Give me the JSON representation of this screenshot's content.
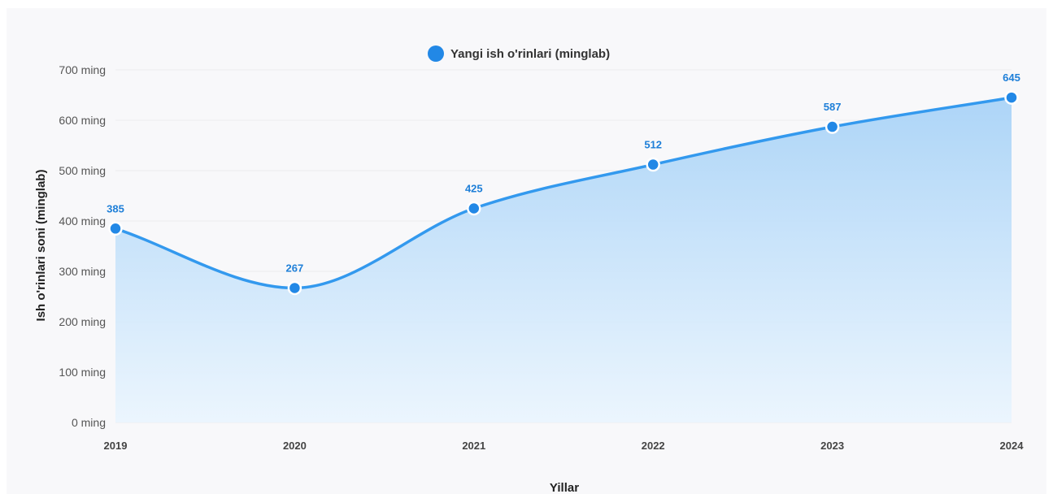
{
  "chart_data": {
    "type": "area",
    "x": [
      "2019",
      "2020",
      "2021",
      "2022",
      "2023",
      "2024"
    ],
    "series": [
      {
        "name": "Yangi ish o'rinlari (minglab)",
        "values": [
          385,
          267,
          425,
          512,
          587,
          645
        ]
      }
    ],
    "data_labels": [
      "385",
      "267",
      "425",
      "512",
      "587",
      "645"
    ],
    "xlabel": "Yillar",
    "ylabel": "Ish o'rinlari soni (minglab)",
    "ylim": [
      0,
      700
    ],
    "yticks": [
      0,
      100,
      200,
      300,
      400,
      500,
      600,
      700
    ],
    "ytick_labels": [
      "0 ming",
      "100 ming",
      "200 ming",
      "300 ming",
      "400 ming",
      "500 ming",
      "600 ming",
      "700 ming"
    ],
    "grid": true,
    "legend_position": "top-center",
    "colors": {
      "line": "#3399ee",
      "marker": "#2288e6",
      "fill_top": "#a9d3f7",
      "fill_bottom": "#eaf5fe",
      "label": "#1e7fd8"
    }
  }
}
